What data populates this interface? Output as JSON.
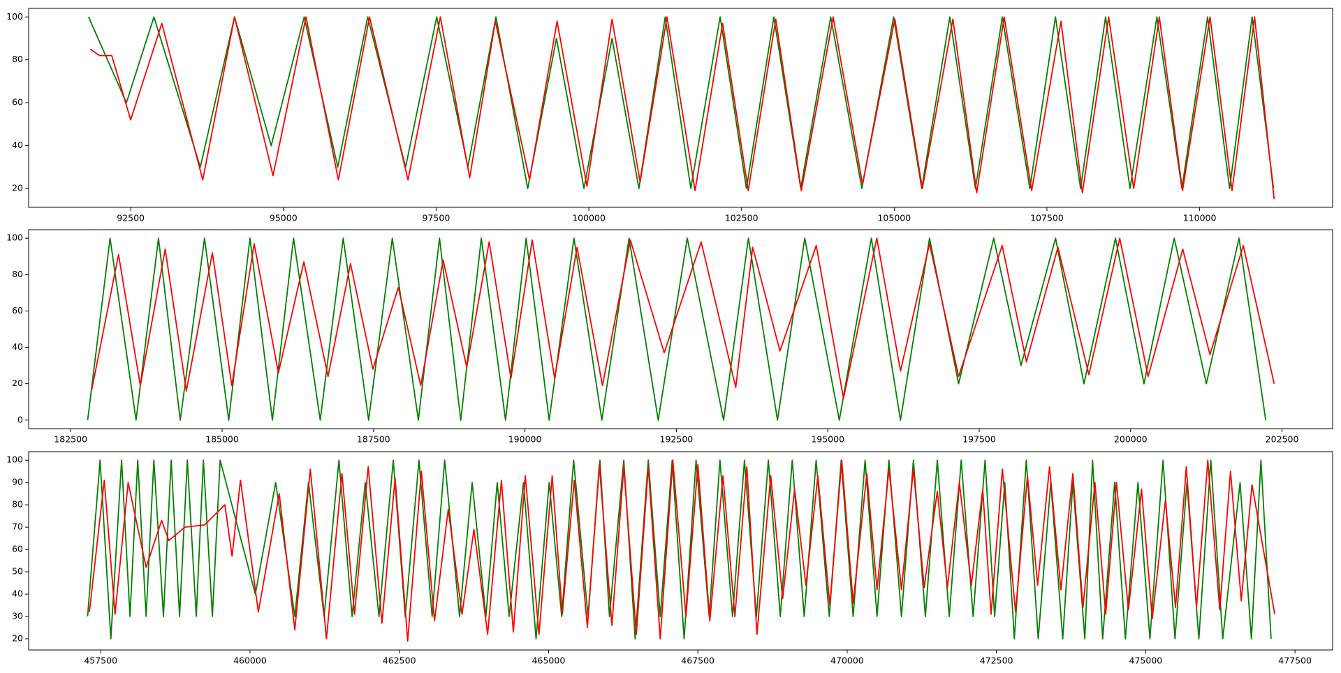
{
  "chart_data": [
    {
      "type": "line",
      "xlim": [
        90829,
        112177
      ],
      "ylim": [
        11.2,
        104
      ],
      "xticks": [
        92500,
        95000,
        97500,
        100000,
        102500,
        105000,
        107500,
        110000
      ],
      "yticks": [
        20,
        40,
        60,
        80,
        100
      ],
      "series": [
        {
          "color": "#008000",
          "x": [
            91810,
            92430,
            92880,
            93640,
            94200,
            94800,
            95340,
            95890,
            96380,
            97000,
            97510,
            98020,
            98480,
            99000,
            99470,
            99920,
            100380,
            100820,
            101250,
            101670,
            102150,
            102580,
            103030,
            103470,
            103960,
            104470,
            104990,
            105450,
            105910,
            106330,
            106770,
            107220,
            107640,
            108050,
            108460,
            108860,
            109300,
            109710,
            110130,
            110490,
            110860,
            111210
          ],
          "values": [
            100,
            60,
            100,
            30,
            100,
            40,
            100,
            30,
            100,
            30,
            100,
            30,
            100,
            20,
            90,
            20,
            90,
            20,
            100,
            20,
            100,
            20,
            100,
            20,
            100,
            20,
            100,
            20,
            100,
            20,
            100,
            20,
            100,
            20,
            100,
            20,
            100,
            20,
            100,
            20,
            100,
            20
          ]
        },
        {
          "color": "#ff0000",
          "x": [
            91840,
            91990,
            92190,
            92500,
            93010,
            93680,
            94200,
            94830,
            95370,
            95900,
            96410,
            97040,
            97570,
            98050,
            98470,
            99030,
            99480,
            99970,
            100380,
            100840,
            101280,
            101740,
            102190,
            102610,
            103060,
            103480,
            104000,
            104480,
            105010,
            105460,
            105960,
            106350,
            106800,
            107250,
            107730,
            108080,
            108510,
            108920,
            109340,
            109720,
            110170,
            110530,
            110900,
            111220
          ],
          "values": [
            85,
            82,
            82,
            52,
            97,
            24,
            100,
            26,
            100,
            24,
            100,
            24,
            100,
            25,
            98,
            24,
            98,
            21,
            99,
            23,
            100,
            19,
            97,
            19,
            99,
            19,
            100,
            22,
            99,
            20,
            99,
            18,
            100,
            19,
            98,
            18,
            100,
            20,
            100,
            19,
            100,
            19,
            100,
            15
          ]
        }
      ]
    },
    {
      "type": "line",
      "xlim": [
        181806,
        203335
      ],
      "ylim": [
        -4.7,
        104.7
      ],
      "xticks": [
        182500,
        185000,
        187500,
        190000,
        192500,
        195000,
        197500,
        200000,
        202500
      ],
      "yticks": [
        0,
        20,
        40,
        60,
        80,
        100
      ],
      "series": [
        {
          "color": "#008000",
          "x": [
            182780,
            183150,
            183580,
            183950,
            184310,
            184710,
            185110,
            185460,
            185830,
            186180,
            186620,
            187000,
            187420,
            187810,
            188240,
            188590,
            188940,
            189280,
            189680,
            190020,
            190400,
            190810,
            191270,
            191720,
            192200,
            192680,
            193280,
            193690,
            194170,
            194620,
            195190,
            195720,
            196200,
            196680,
            197160,
            197740,
            198190,
            198760,
            199230,
            199750,
            200220,
            200720,
            201250,
            201790,
            202230
          ],
          "values": [
            0,
            100,
            0,
            100,
            0,
            100,
            0,
            100,
            0,
            100,
            0,
            100,
            0,
            100,
            0,
            100,
            0,
            100,
            0,
            100,
            0,
            100,
            0,
            100,
            0,
            100,
            0,
            100,
            0,
            100,
            0,
            100,
            0,
            100,
            20,
            100,
            30,
            100,
            20,
            100,
            20,
            100,
            20,
            100,
            0
          ]
        },
        {
          "color": "#ff0000",
          "x": [
            182850,
            183290,
            183650,
            184060,
            184410,
            184840,
            185160,
            185530,
            185930,
            186350,
            186750,
            187120,
            187490,
            187910,
            188280,
            188650,
            189040,
            189410,
            189770,
            190120,
            190490,
            190860,
            191280,
            191740,
            192300,
            192910,
            193480,
            193760,
            194210,
            194810,
            195260,
            195810,
            196200,
            196680,
            197160,
            197880,
            198280,
            198800,
            199310,
            199820,
            200290,
            200860,
            201310,
            201860,
            202370
          ],
          "values": [
            17,
            91,
            19,
            94,
            16,
            92,
            19,
            97,
            26,
            87,
            24,
            86,
            28,
            73,
            19,
            88,
            29,
            98,
            23,
            99,
            23,
            95,
            19,
            99,
            37,
            98,
            18,
            95,
            38,
            96,
            12,
            100,
            27,
            97,
            24,
            96,
            32,
            95,
            25,
            100,
            24,
            94,
            36,
            96,
            20
          ]
        }
      ]
    },
    {
      "type": "line",
      "xlim": [
        456293,
        478130
      ],
      "ylim": [
        15,
        103.8
      ],
      "xticks": [
        457500,
        460000,
        462500,
        465000,
        467500,
        470000,
        472500,
        475000,
        477500
      ],
      "yticks": [
        20,
        30,
        40,
        50,
        60,
        70,
        80,
        90,
        100
      ],
      "series": [
        {
          "color": "#008000",
          "x": [
            457280,
            457490,
            457670,
            457850,
            457990,
            458120,
            458260,
            458390,
            458550,
            458680,
            458820,
            458950,
            459100,
            459220,
            459370,
            459500,
            460090,
            460430,
            460750,
            460980,
            461240,
            461490,
            461710,
            461930,
            462160,
            462400,
            462600,
            462830,
            463050,
            463260,
            463510,
            463720,
            463950,
            464140,
            464340,
            464580,
            464790,
            465010,
            465220,
            465420,
            465660,
            465860,
            466020,
            466260,
            466450,
            466670,
            466870,
            467070,
            467270,
            467470,
            467690,
            467870,
            468080,
            468280,
            468480,
            468680,
            468880,
            469080,
            469280,
            469480,
            469700,
            469900,
            470100,
            470300,
            470500,
            470700,
            470910,
            471110,
            471310,
            471510,
            471710,
            471910,
            472110,
            472310,
            472470,
            472640,
            472800,
            473000,
            473200,
            473410,
            473610,
            473780,
            473980,
            474110,
            474280,
            474480,
            474660,
            474870,
            475070,
            475290,
            475490,
            475690,
            475890,
            476090,
            476290,
            476580,
            476770,
            476930,
            477100
          ],
          "values": [
            30,
            100,
            20,
            100,
            30,
            100,
            30,
            100,
            30,
            100,
            30,
            100,
            30,
            100,
            30,
            100,
            40,
            90,
            30,
            90,
            30,
            100,
            30,
            90,
            30,
            100,
            30,
            100,
            30,
            100,
            30,
            90,
            30,
            90,
            30,
            90,
            20,
            90,
            30,
            100,
            30,
            100,
            30,
            100,
            20,
            100,
            30,
            100,
            20,
            100,
            30,
            100,
            30,
            100,
            30,
            100,
            30,
            100,
            30,
            100,
            30,
            100,
            30,
            100,
            30,
            100,
            30,
            100,
            30,
            100,
            30,
            100,
            30,
            100,
            30,
            90,
            20,
            100,
            20,
            90,
            20,
            90,
            20,
            100,
            20,
            90,
            20,
            90,
            20,
            100,
            20,
            90,
            20,
            100,
            20,
            90,
            20,
            100,
            20
          ]
        },
        {
          "color": "#ff0000",
          "x": [
            457310,
            457560,
            457740,
            457960,
            458260,
            458520,
            458640,
            458910,
            459240,
            459580,
            459700,
            459840,
            460140,
            460490,
            460750,
            461010,
            461280,
            461540,
            461750,
            461980,
            462210,
            462430,
            462640,
            462870,
            463090,
            463320,
            463550,
            463750,
            463980,
            464210,
            464410,
            464610,
            464840,
            465060,
            465230,
            465430,
            465650,
            465850,
            466060,
            466260,
            466470,
            466670,
            466870,
            467080,
            467300,
            467500,
            467700,
            467920,
            468120,
            468320,
            468490,
            468720,
            468920,
            469120,
            469310,
            469510,
            469710,
            469910,
            470100,
            470330,
            470500,
            470700,
            470910,
            471110,
            471290,
            471510,
            471680,
            471880,
            472080,
            472270,
            472410,
            472600,
            472820,
            473020,
            473190,
            473390,
            473580,
            473780,
            473950,
            474150,
            474330,
            474510,
            474710,
            474930,
            475110,
            475330,
            475500,
            475680,
            475850,
            476040,
            476240,
            476420,
            476600,
            476780,
            477160
          ],
          "values": [
            32,
            91,
            31,
            90,
            52,
            73,
            64,
            70,
            71,
            80,
            57,
            91,
            32,
            85,
            24,
            96,
            20,
            94,
            31,
            97,
            27,
            92,
            19,
            95,
            28,
            78,
            31,
            69,
            22,
            91,
            23,
            93,
            22,
            93,
            31,
            91,
            25,
            98,
            26,
            97,
            22,
            97,
            20,
            100,
            30,
            98,
            28,
            93,
            30,
            97,
            22,
            93,
            38,
            87,
            44,
            93,
            35,
            100,
            36,
            94,
            42,
            96,
            42,
            96,
            43,
            86,
            43,
            90,
            44,
            87,
            31,
            96,
            32,
            93,
            44,
            97,
            42,
            94,
            34,
            90,
            31,
            90,
            33,
            87,
            29,
            82,
            34,
            97,
            34,
            100,
            33,
            95,
            37,
            89,
            31
          ]
        }
      ]
    }
  ]
}
